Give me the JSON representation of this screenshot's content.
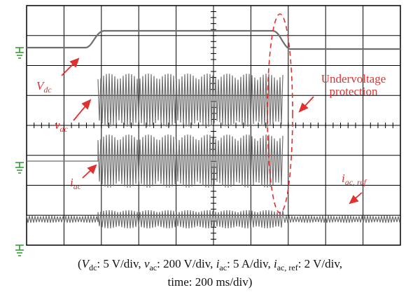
{
  "labels": {
    "vdc": [
      "V",
      "dc"
    ],
    "vac": [
      "v",
      "ac"
    ],
    "iac": [
      "i",
      "ac"
    ],
    "iacref": [
      "i",
      "ac, ref"
    ],
    "protection": [
      "Undervoltage",
      "protection"
    ]
  },
  "caption": {
    "line1": [
      "(",
      "V",
      "dc",
      ": 5 V/div, ",
      "v",
      "ac",
      ": 200 V/div, ",
      "i",
      "ac",
      ": 5 A/div, ",
      "i",
      "ac, ref",
      ": 2 V/div,"
    ],
    "line2": "time: 200 ms/div)"
  }
}
